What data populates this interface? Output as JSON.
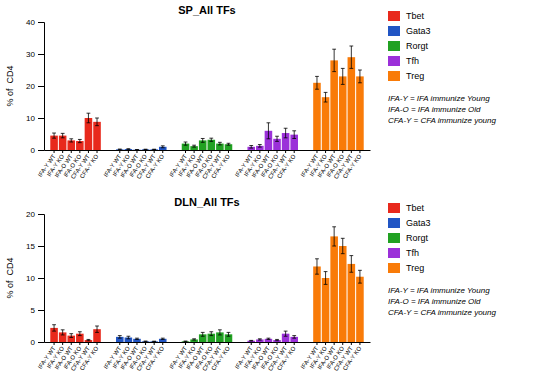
{
  "chart_data": [
    {
      "type": "bar",
      "title": "SP_All TFs",
      "y_label": "% of  CD4",
      "categories": [
        "IFA-Y WT",
        "IFA-Y KO",
        "IFA-O WT",
        "IFA-O KO",
        "CFA-Y WT",
        "CFA-Y KO"
      ],
      "series": [
        {
          "name": "Tbet",
          "color": "#e8291c",
          "values": [
            4.5,
            4.5,
            3.0,
            2.8,
            10.0,
            8.8
          ],
          "errors": [
            0.8,
            0.7,
            0.5,
            0.5,
            1.5,
            1.2
          ]
        },
        {
          "name": "Gata3",
          "color": "#2155c4",
          "values": [
            0.2,
            0.3,
            0.1,
            0.2,
            0.2,
            1.0
          ],
          "errors": [
            0.1,
            0.1,
            0.05,
            0.05,
            0.05,
            0.3
          ]
        },
        {
          "name": "Rorgt",
          "color": "#21a122",
          "values": [
            2.0,
            1.2,
            3.0,
            3.2,
            2.0,
            1.8
          ],
          "errors": [
            0.5,
            0.3,
            0.6,
            0.5,
            0.4,
            0.3
          ]
        },
        {
          "name": "Tfh",
          "color": "#9b30d9",
          "values": [
            1.0,
            1.3,
            6.0,
            3.5,
            5.3,
            4.8
          ],
          "errors": [
            0.4,
            0.4,
            2.5,
            0.8,
            1.5,
            1.2
          ]
        },
        {
          "name": "Treg",
          "color": "#f97b08",
          "values": [
            21.0,
            16.5,
            28.0,
            23.0,
            29.0,
            23.0
          ],
          "errors": [
            2.0,
            1.5,
            3.5,
            2.5,
            3.5,
            2.0
          ]
        }
      ],
      "ylim": [
        0,
        40
      ],
      "yticks": [
        0,
        10,
        20,
        30,
        40
      ],
      "grid": false,
      "annotation": "IFA-Y = IFA immunize Young\nIFA-O = IFA immunize Old\nCFA-Y = CFA immunize young"
    },
    {
      "type": "bar",
      "title": "DLN_All TFs",
      "y_label": "% of  CD4",
      "categories": [
        "IFA-Y WT",
        "IFA-Y KO",
        "IFA-O WT",
        "IFA-O KO",
        "CFA-Y WT",
        "CFA-Y KO"
      ],
      "series": [
        {
          "name": "Tbet",
          "color": "#e8291c",
          "values": [
            2.2,
            1.5,
            1.0,
            1.3,
            0.3,
            2.0
          ],
          "errors": [
            0.5,
            0.4,
            0.3,
            0.3,
            0.1,
            0.5
          ]
        },
        {
          "name": "Gata3",
          "color": "#2155c4",
          "values": [
            0.8,
            0.7,
            0.5,
            0.1,
            0.1,
            0.5
          ],
          "errors": [
            0.2,
            0.2,
            0.1,
            0.05,
            0.03,
            0.1
          ]
        },
        {
          "name": "Rorgt",
          "color": "#21a122",
          "values": [
            0.1,
            0.4,
            1.2,
            1.3,
            1.5,
            1.2
          ],
          "errors": [
            0.05,
            0.1,
            0.3,
            0.3,
            0.4,
            0.3
          ]
        },
        {
          "name": "Tfh",
          "color": "#9b30d9",
          "values": [
            0.2,
            0.4,
            0.5,
            0.3,
            1.3,
            0.8
          ],
          "errors": [
            0.05,
            0.1,
            0.1,
            0.1,
            0.4,
            0.2
          ]
        },
        {
          "name": "Treg",
          "color": "#f97b08",
          "values": [
            11.8,
            10.0,
            16.5,
            15.0,
            12.2,
            10.2
          ],
          "errors": [
            1.2,
            1.0,
            1.5,
            1.2,
            1.3,
            1.0
          ]
        }
      ],
      "ylim": [
        0,
        20
      ],
      "yticks": [
        0,
        5,
        10,
        15,
        20
      ],
      "grid": false,
      "annotation": "IFA-Y = IFA immunize Young\nIFA-O = IFA immunize Old\nCFA-Y = CFA immunize young"
    }
  ]
}
